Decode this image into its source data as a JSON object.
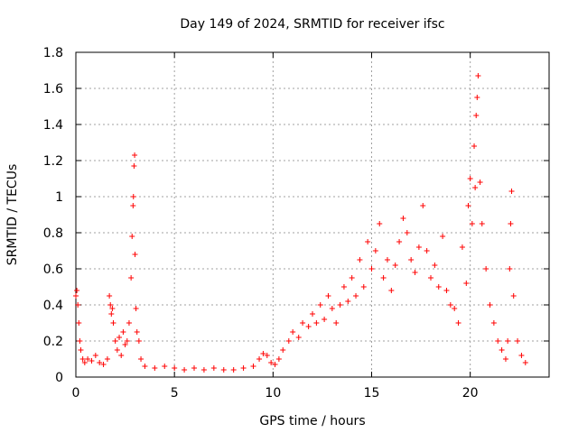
{
  "chart_data": {
    "type": "scatter",
    "title": "Day 149 of 2024, SRMTID for receiver ifsc",
    "xlabel": "GPS time / hours",
    "ylabel": "SRMTID / TECUs",
    "xlim": [
      0,
      24
    ],
    "ylim": [
      0,
      1.8
    ],
    "xticks": [
      "0",
      "5",
      "10",
      "15",
      "20"
    ],
    "yticks": [
      "0",
      "0.2",
      "0.4",
      "0.6",
      "0.8",
      "1",
      "1.2",
      "1.4",
      "1.6",
      "1.8"
    ],
    "grid": true,
    "marker": "plus",
    "color": "#ff0000",
    "series": [
      {
        "name": "SRMTID",
        "x": [
          0.0,
          0.05,
          0.1,
          0.15,
          0.2,
          0.25,
          0.35,
          0.45,
          0.6,
          0.8,
          1.0,
          1.2,
          1.4,
          1.6,
          1.7,
          1.75,
          1.8,
          1.85,
          1.9,
          2.0,
          2.1,
          2.2,
          2.3,
          2.4,
          2.5,
          2.6,
          2.7,
          2.8,
          2.85,
          2.9,
          2.92,
          2.95,
          2.98,
          3.0,
          3.05,
          3.1,
          3.2,
          3.3,
          3.5,
          4.0,
          4.5,
          5.0,
          5.5,
          6.0,
          6.5,
          7.0,
          7.5,
          8.0,
          8.5,
          9.0,
          9.3,
          9.5,
          9.7,
          9.9,
          10.1,
          10.3,
          10.5,
          10.8,
          11.0,
          11.3,
          11.5,
          11.8,
          12.0,
          12.2,
          12.4,
          12.6,
          12.8,
          13.0,
          13.2,
          13.4,
          13.6,
          13.8,
          14.0,
          14.2,
          14.4,
          14.6,
          14.8,
          15.0,
          15.2,
          15.4,
          15.6,
          15.8,
          16.0,
          16.2,
          16.4,
          16.6,
          16.8,
          17.0,
          17.2,
          17.4,
          17.6,
          17.8,
          18.0,
          18.2,
          18.4,
          18.6,
          18.8,
          19.0,
          19.2,
          19.4,
          19.6,
          19.8,
          19.9,
          20.0,
          20.1,
          20.2,
          20.25,
          20.3,
          20.35,
          20.4,
          20.5,
          20.6,
          20.8,
          21.0,
          21.2,
          21.4,
          21.6,
          21.8,
          21.9,
          22.0,
          22.05,
          22.1,
          22.2,
          22.4,
          22.6,
          22.8
        ],
        "y": [
          0.45,
          0.48,
          0.4,
          0.3,
          0.2,
          0.15,
          0.1,
          0.08,
          0.1,
          0.09,
          0.12,
          0.08,
          0.07,
          0.1,
          0.45,
          0.4,
          0.35,
          0.38,
          0.3,
          0.2,
          0.15,
          0.22,
          0.12,
          0.25,
          0.18,
          0.2,
          0.3,
          0.55,
          0.78,
          0.95,
          1.0,
          1.17,
          1.23,
          0.68,
          0.38,
          0.25,
          0.2,
          0.1,
          0.06,
          0.05,
          0.06,
          0.05,
          0.04,
          0.05,
          0.04,
          0.05,
          0.04,
          0.04,
          0.05,
          0.06,
          0.1,
          0.13,
          0.12,
          0.08,
          0.07,
          0.1,
          0.15,
          0.2,
          0.25,
          0.22,
          0.3,
          0.28,
          0.35,
          0.3,
          0.4,
          0.32,
          0.45,
          0.38,
          0.3,
          0.4,
          0.5,
          0.42,
          0.55,
          0.45,
          0.65,
          0.5,
          0.75,
          0.6,
          0.7,
          0.85,
          0.55,
          0.65,
          0.48,
          0.62,
          0.75,
          0.88,
          0.8,
          0.65,
          0.58,
          0.72,
          0.95,
          0.7,
          0.55,
          0.62,
          0.5,
          0.78,
          0.48,
          0.4,
          0.38,
          0.3,
          0.72,
          0.52,
          0.95,
          1.1,
          0.85,
          1.28,
          1.05,
          1.45,
          1.55,
          1.67,
          1.08,
          0.85,
          0.6,
          0.4,
          0.3,
          0.2,
          0.15,
          0.1,
          0.2,
          0.6,
          0.85,
          1.03,
          0.45,
          0.2,
          0.12,
          0.08
        ]
      }
    ]
  }
}
